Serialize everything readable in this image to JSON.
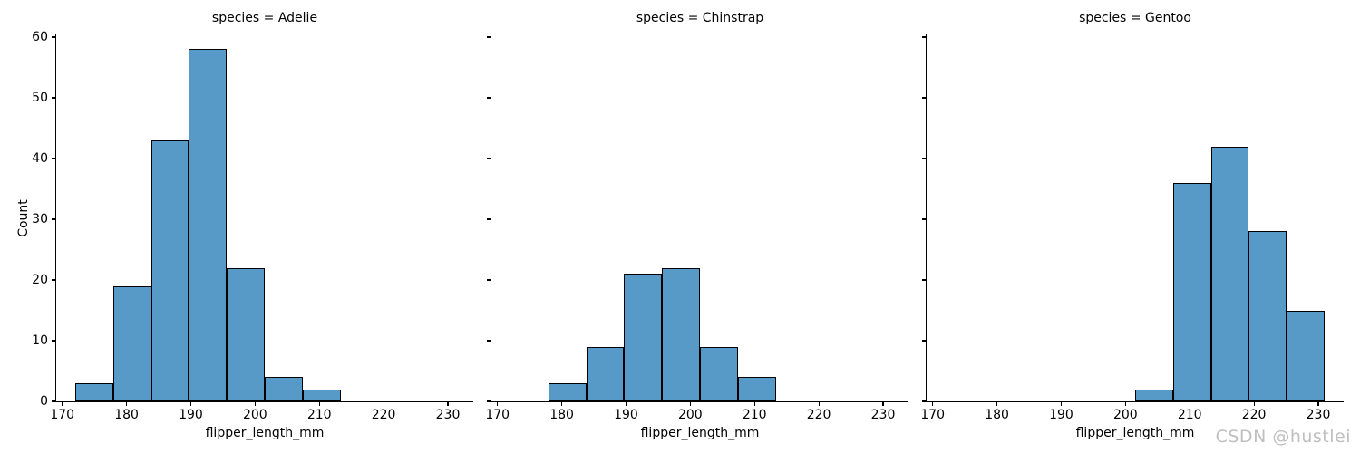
{
  "watermark": "CSDN @hustlei",
  "colors": {
    "background": "#FFFFFF",
    "bar_fill": "#5799C7",
    "bar_edge": "#000000",
    "axis": "#000000",
    "watermark_text": "#BFBFBF"
  },
  "chart_data": {
    "type": "bar",
    "subtype": "faceted-histogram",
    "facet_titles": [
      "species = Adelie",
      "species = Chinstrap",
      "species = Gentoo"
    ],
    "xlabel": "flipper_length_mm",
    "ylabel": "Count",
    "x_ticks": [
      170,
      180,
      190,
      200,
      210,
      220,
      230
    ],
    "y_ticks": [
      0,
      10,
      20,
      30,
      40,
      50,
      60
    ],
    "xlim": [
      169.05,
      233.95
    ],
    "ylim": [
      0,
      60.45
    ],
    "grid": false,
    "legend": "none",
    "bin_edges": [
      172.0,
      177.9,
      183.8,
      189.7,
      195.6,
      201.5,
      207.4,
      213.3,
      219.2,
      225.1,
      231.0
    ],
    "series": [
      {
        "name": "Adelie",
        "counts": [
          3,
          19,
          43,
          58,
          22,
          4,
          2,
          0,
          0,
          0
        ]
      },
      {
        "name": "Chinstrap",
        "counts": [
          0,
          3,
          9,
          21,
          22,
          9,
          4,
          0,
          0,
          0
        ]
      },
      {
        "name": "Gentoo",
        "counts": [
          0,
          0,
          0,
          0,
          0,
          2,
          36,
          42,
          28,
          15
        ]
      }
    ]
  }
}
